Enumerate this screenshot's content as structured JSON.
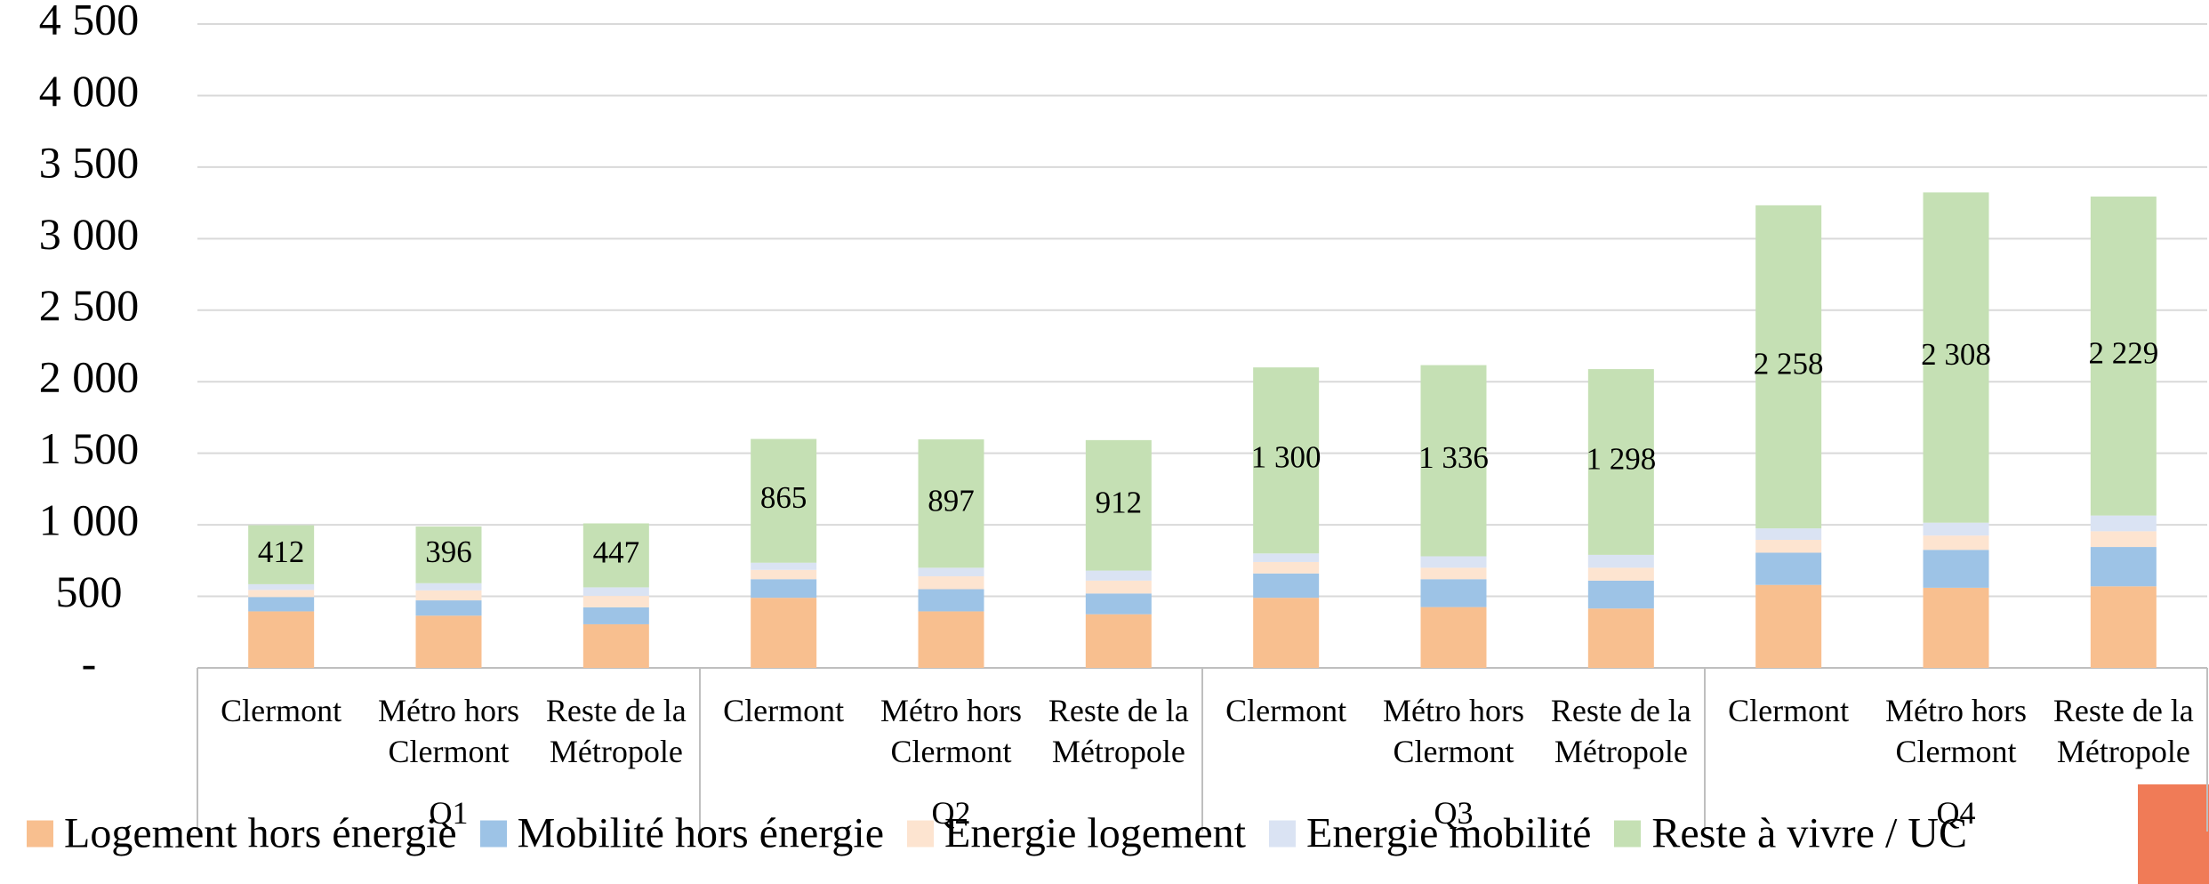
{
  "chart_data": {
    "type": "stacked_bar",
    "categories": [
      "Clermont",
      "Métro hors Clermont",
      "Reste de la Métropole",
      "Clermont",
      "Métro hors Clermont",
      "Reste de la Métropole",
      "Clermont",
      "Métro hors Clermont",
      "Reste de la Métropole",
      "Clermont",
      "Métro hors Clermont",
      "Reste de la Métropole"
    ],
    "groups": [
      "Q1",
      "Q2",
      "Q3",
      "Q4"
    ],
    "series": [
      {
        "name": "Logement hors énergie",
        "color": "#f8bf8f",
        "values": [
          395,
          365,
          305,
          490,
          395,
          375,
          490,
          425,
          415,
          580,
          560,
          570
        ]
      },
      {
        "name": "Mobilité hors énergie",
        "color": "#9dc3e6",
        "values": [
          100,
          107,
          118,
          130,
          155,
          145,
          170,
          195,
          195,
          225,
          265,
          275
        ]
      },
      {
        "name": "Energie logement",
        "color": "#fde4d0",
        "values": [
          50,
          70,
          80,
          65,
          90,
          90,
          80,
          80,
          90,
          90,
          100,
          110
        ]
      },
      {
        "name": "Energie mobilité",
        "color": "#dae3f3",
        "values": [
          40,
          50,
          60,
          50,
          60,
          70,
          60,
          80,
          90,
          80,
          90,
          110
        ]
      },
      {
        "name": "Reste à vivre / UC",
        "color": "#c5e0b4",
        "values": [
          412,
          396,
          447,
          865,
          897,
          912,
          1300,
          1336,
          1298,
          2258,
          2308,
          2229
        ],
        "value_labels": [
          "412",
          "396",
          "447",
          "865",
          "897",
          "912",
          "1 300",
          "1 336",
          "1 298",
          "2 258",
          "2 308",
          "2 229"
        ]
      }
    ],
    "ylim": [
      0,
      4500
    ],
    "yticks": [
      {
        "value": 0,
        "label": "-"
      },
      500,
      {
        "value": 1000,
        "label": "1 000"
      },
      {
        "value": 1500,
        "label": "1 500"
      },
      {
        "value": 2000,
        "label": "2 000"
      },
      {
        "value": 2500,
        "label": "2 500"
      },
      {
        "value": 3000,
        "label": "3 000"
      },
      {
        "value": 3500,
        "label": "3 500"
      },
      {
        "value": 4000,
        "label": "4 000"
      },
      {
        "value": 4500,
        "label": "4 500"
      }
    ],
    "grid": true,
    "legend": "bottom"
  }
}
